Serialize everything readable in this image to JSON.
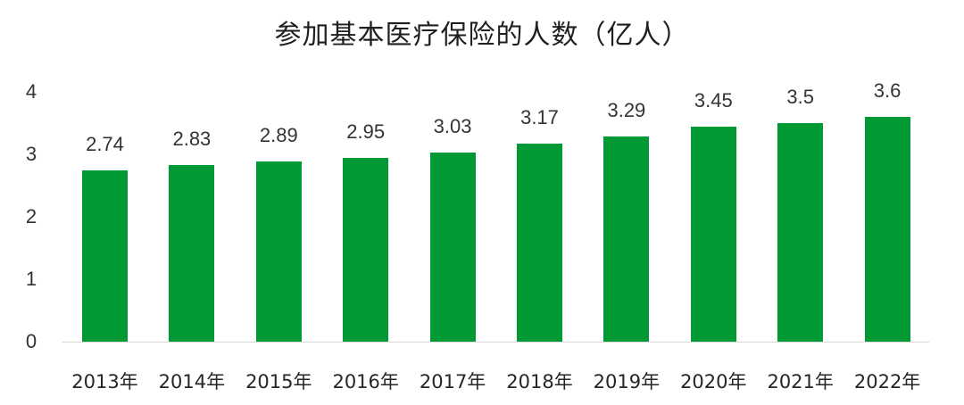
{
  "chart_data": {
    "type": "bar",
    "title": "参加基本医疗保险的人数（亿人）",
    "xlabel": "",
    "ylabel": "",
    "categories": [
      "2013年",
      "2014年",
      "2015年",
      "2016年",
      "2017年",
      "2018年",
      "2019年",
      "2020年",
      "2021年",
      "2022年"
    ],
    "values": [
      2.74,
      2.83,
      2.89,
      2.95,
      3.03,
      3.17,
      3.29,
      3.45,
      3.5,
      3.6
    ],
    "value_labels": [
      "2.74",
      "2.83",
      "2.89",
      "2.95",
      "3.03",
      "3.17",
      "3.29",
      "3.45",
      "3.5",
      "3.6"
    ],
    "yticks": [
      "0",
      "1",
      "2",
      "3",
      "4"
    ],
    "ylim": [
      0,
      4
    ],
    "grid": false,
    "legend": null,
    "bar_color": "#009933"
  }
}
